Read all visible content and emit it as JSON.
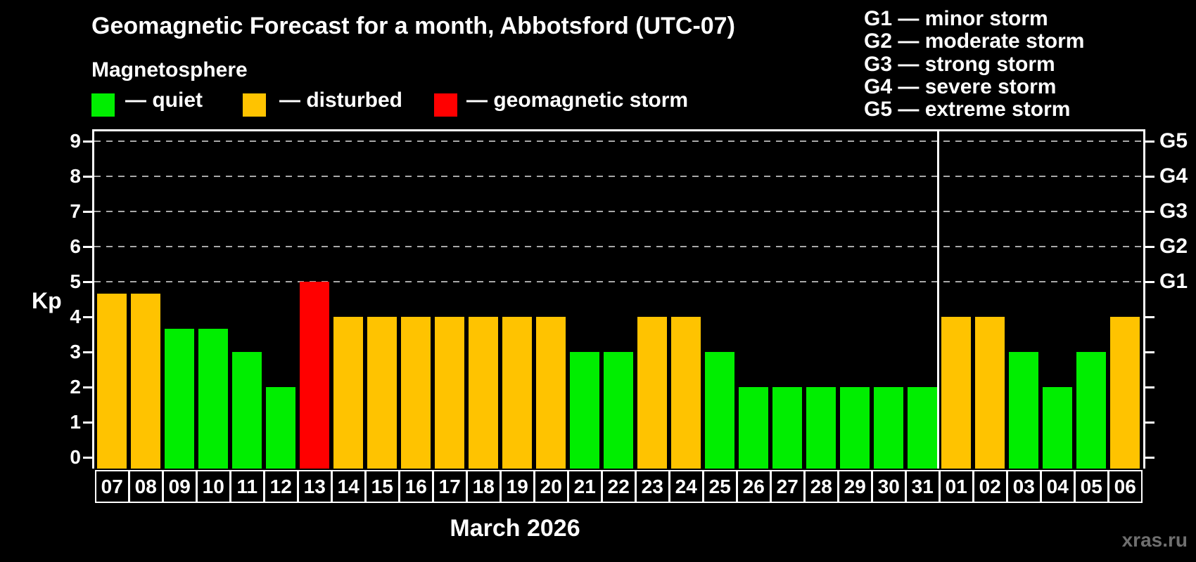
{
  "header": {
    "title": "Geomagnetic Forecast for a month, Abbotsford (UTC-07)",
    "subtitle": "Magnetosphere"
  },
  "legend": {
    "items": [
      {
        "label": "— quiet",
        "status": "quiet"
      },
      {
        "label": "— disturbed",
        "status": "disturbed"
      },
      {
        "label": "— geomagnetic storm",
        "status": "storm"
      }
    ]
  },
  "g_legend": {
    "lines": [
      "G1 — minor storm",
      "G2 — moderate storm",
      "G3 — strong storm",
      "G4 — severe storm",
      "G5 — extreme storm"
    ]
  },
  "colors": {
    "quiet": "#00ee00",
    "disturbed": "#ffc300",
    "storm": "#ff0000",
    "grid": "#a8a8a8",
    "axis": "#ffffff",
    "watermark": "#6f6f6f"
  },
  "watermark": "xras.ru",
  "chart_data": {
    "type": "bar",
    "title": "Geomagnetic Forecast for a month, Abbotsford (UTC-07)",
    "ylabel": "Kp",
    "xlabel": "March 2026",
    "ylim": [
      -0.3,
      9.35
    ],
    "yticks": [
      0,
      1,
      2,
      3,
      4,
      5,
      6,
      7,
      8,
      9
    ],
    "gridline_kp": [
      5,
      6,
      7,
      8,
      9
    ],
    "legend_position": "top",
    "right_axis_labels": [
      {
        "kp": 5,
        "label": "G1"
      },
      {
        "kp": 6,
        "label": "G2"
      },
      {
        "kp": 7,
        "label": "G3"
      },
      {
        "kp": 8,
        "label": "G4"
      },
      {
        "kp": 9,
        "label": "G5"
      }
    ],
    "month_divider_after_index": 24,
    "points": [
      {
        "day": "07",
        "kp": 4.67,
        "status": "disturbed"
      },
      {
        "day": "08",
        "kp": 4.67,
        "status": "disturbed"
      },
      {
        "day": "09",
        "kp": 3.67,
        "status": "quiet"
      },
      {
        "day": "10",
        "kp": 3.67,
        "status": "quiet"
      },
      {
        "day": "11",
        "kp": 3,
        "status": "quiet"
      },
      {
        "day": "12",
        "kp": 2,
        "status": "quiet"
      },
      {
        "day": "13",
        "kp": 5,
        "status": "storm"
      },
      {
        "day": "14",
        "kp": 4,
        "status": "disturbed"
      },
      {
        "day": "15",
        "kp": 4,
        "status": "disturbed"
      },
      {
        "day": "16",
        "kp": 4,
        "status": "disturbed"
      },
      {
        "day": "17",
        "kp": 4,
        "status": "disturbed"
      },
      {
        "day": "18",
        "kp": 4,
        "status": "disturbed"
      },
      {
        "day": "19",
        "kp": 4,
        "status": "disturbed"
      },
      {
        "day": "20",
        "kp": 4,
        "status": "disturbed"
      },
      {
        "day": "21",
        "kp": 3,
        "status": "quiet"
      },
      {
        "day": "22",
        "kp": 3,
        "status": "quiet"
      },
      {
        "day": "23",
        "kp": 4,
        "status": "disturbed"
      },
      {
        "day": "24",
        "kp": 4,
        "status": "disturbed"
      },
      {
        "day": "25",
        "kp": 3,
        "status": "quiet"
      },
      {
        "day": "26",
        "kp": 2,
        "status": "quiet"
      },
      {
        "day": "27",
        "kp": 2,
        "status": "quiet"
      },
      {
        "day": "28",
        "kp": 2,
        "status": "quiet"
      },
      {
        "day": "29",
        "kp": 2,
        "status": "quiet"
      },
      {
        "day": "30",
        "kp": 2,
        "status": "quiet"
      },
      {
        "day": "31",
        "kp": 2,
        "status": "quiet"
      },
      {
        "day": "01",
        "kp": 4,
        "status": "disturbed"
      },
      {
        "day": "02",
        "kp": 4,
        "status": "disturbed"
      },
      {
        "day": "03",
        "kp": 3,
        "status": "quiet"
      },
      {
        "day": "04",
        "kp": 2,
        "status": "quiet"
      },
      {
        "day": "05",
        "kp": 3,
        "status": "quiet"
      },
      {
        "day": "06",
        "kp": 4,
        "status": "disturbed"
      }
    ]
  }
}
